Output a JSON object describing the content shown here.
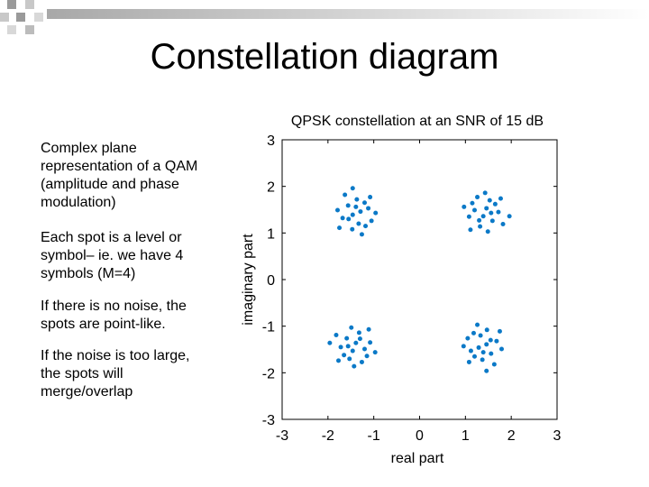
{
  "slide": {
    "title": "Constellation diagram",
    "bullets": [
      "Complex plane representation of a QAM (amplitude and phase modulation)",
      "Each spot is a level or symbol– ie. we have 4 symbols (M=4)",
      "If there is no noise, the spots are point-like.",
      "If the noise is too large, the spots will merge/overlap"
    ]
  },
  "chart_data": {
    "type": "scatter",
    "title": "QPSK constellation at an SNR of 15 dB",
    "x_label": "real part",
    "y_label": "imaginary part",
    "color": "#0b79c7",
    "x": [
      1.46,
      1.2,
      1.59,
      1.32,
      1.72,
      1.08,
      1.53,
      1.39,
      1.65,
      1.15,
      1.49,
      1.26,
      1.82,
      0.97,
      1.43,
      1.77,
      1.11,
      1.56,
      1.3,
      1.96,
      -1.29,
      -1.33,
      -1.56,
      -1.68,
      -1.37,
      -1.47,
      -1.12,
      -1.46,
      -1.2,
      -1.18,
      -1.79,
      -1.05,
      -1.63,
      -1.26,
      -0.96,
      -1.08,
      -1.75,
      -1.39,
      -1.55,
      -1.46,
      -1.46,
      -1.2,
      -1.59,
      -1.32,
      -1.72,
      -1.08,
      -1.53,
      -1.39,
      -1.65,
      -1.15,
      -1.49,
      -1.26,
      -1.82,
      -0.97,
      -1.43,
      -1.77,
      -1.11,
      -1.56,
      -1.3,
      -1.96,
      1.29,
      1.33,
      1.56,
      1.68,
      1.37,
      1.47,
      1.12,
      1.46,
      1.2,
      1.18,
      1.79,
      1.05,
      1.63,
      1.26,
      0.96,
      1.08,
      1.75,
      1.39,
      1.55,
      1.46
    ],
    "values": [
      1.53,
      1.49,
      1.26,
      1.14,
      1.45,
      1.35,
      1.7,
      1.36,
      1.62,
      1.64,
      1.03,
      1.77,
      1.19,
      1.56,
      1.86,
      1.74,
      1.07,
      1.43,
      1.27,
      1.36,
      1.46,
      1.2,
      1.59,
      1.32,
      1.72,
      1.08,
      1.53,
      1.39,
      1.65,
      1.15,
      1.49,
      1.26,
      1.82,
      0.97,
      1.43,
      1.77,
      1.11,
      1.56,
      1.3,
      1.96,
      -1.53,
      -1.49,
      -1.26,
      -1.14,
      -1.45,
      -1.35,
      -1.7,
      -1.36,
      -1.62,
      -1.64,
      -1.03,
      -1.77,
      -1.19,
      -1.56,
      -1.86,
      -1.74,
      -1.07,
      -1.43,
      -1.27,
      -1.36,
      -1.46,
      -1.2,
      -1.59,
      -1.32,
      -1.72,
      -1.08,
      -1.53,
      -1.39,
      -1.65,
      -1.15,
      -1.49,
      -1.26,
      -1.82,
      -0.97,
      -1.43,
      -1.77,
      -1.11,
      -1.56,
      -1.3,
      -1.96
    ],
    "xlim": [
      -3,
      3
    ],
    "ylim": [
      -3,
      3
    ],
    "xticks": [
      -3,
      -2,
      -1,
      0,
      1,
      2,
      3
    ],
    "yticks": [
      -3,
      -2,
      -1,
      0,
      1,
      2,
      3
    ]
  }
}
